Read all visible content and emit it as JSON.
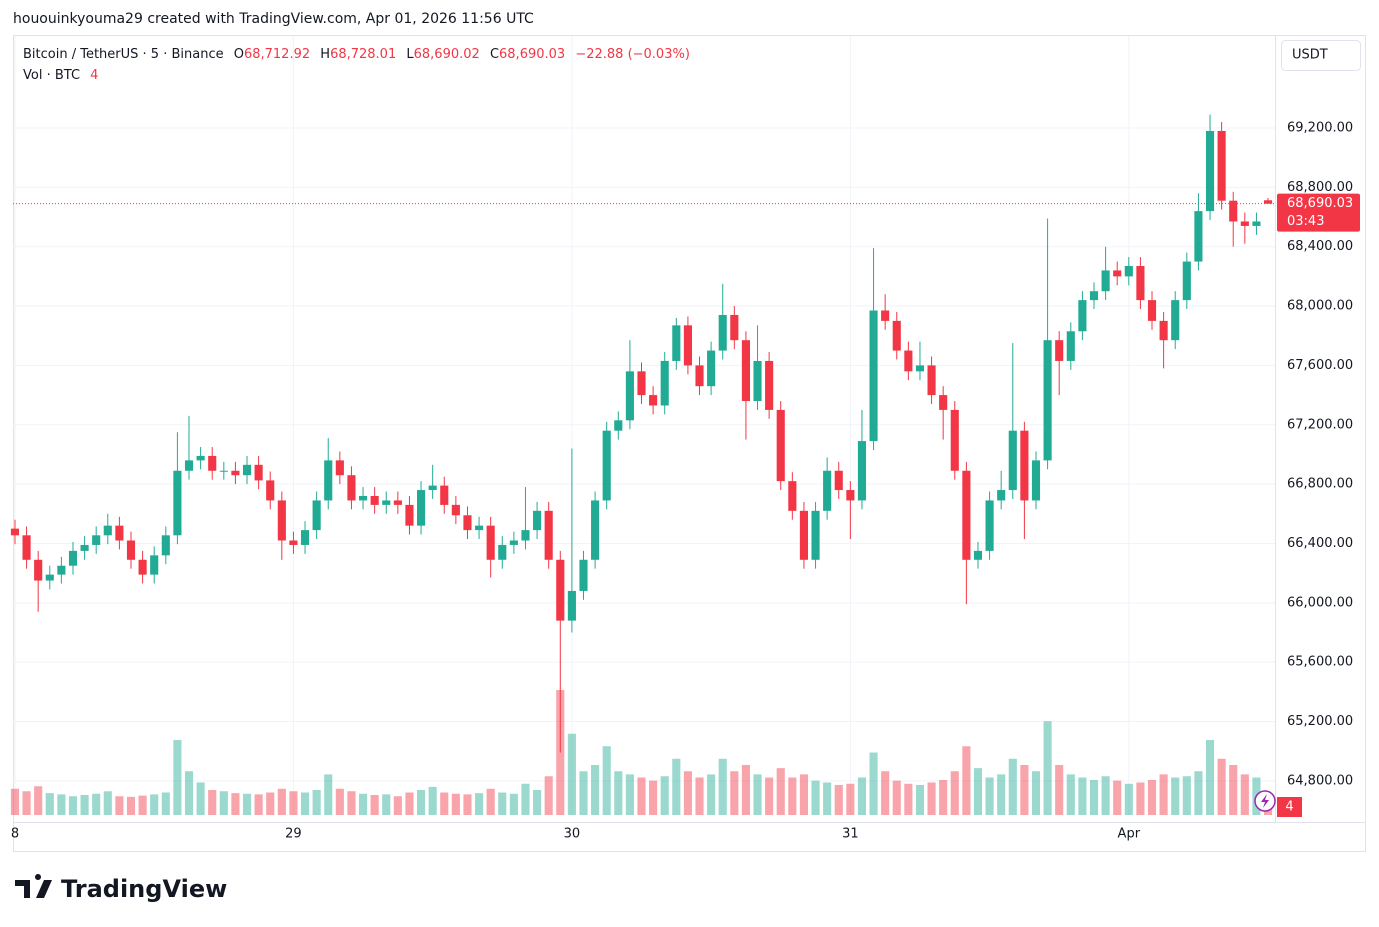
{
  "header": "hououinkyouma29 created with TradingView.com, Apr 01, 2026 11:56 UTC",
  "logo": "TradingView",
  "chart_data": {
    "type": "candlestick",
    "title": "Bitcoin / TetherUS · 5 · Binance",
    "legend": {
      "open_label": "O",
      "open": "68,712.92",
      "high_label": "H",
      "high": "68,728.01",
      "low_label": "L",
      "low": "68,690.02",
      "close_label": "C",
      "close": "68,690.03",
      "change": "−22.88 (−0.03%)"
    },
    "volume_title": "Vol · BTC",
    "volume_value": "4",
    "volume_badge": "4",
    "currency": "USDT",
    "last_price": {
      "value": 68690.03,
      "label": "68,690.03"
    },
    "countdown": "03:43",
    "up_color": "#22ab94",
    "down_color": "#f23645",
    "grid": true,
    "xlim": [
      -0.17,
      108.6
    ],
    "xticks": [
      {
        "value": 0,
        "label": "8"
      },
      {
        "value": 24,
        "label": "29"
      },
      {
        "value": 48,
        "label": "30"
      },
      {
        "value": 72,
        "label": "31"
      },
      {
        "value": 96,
        "label": "Apr"
      }
    ],
    "ylim": [
      64570,
      69820
    ],
    "yticks": [
      {
        "value": 64800,
        "label": "64,800.00"
      },
      {
        "value": 65200,
        "label": "65,200.00"
      },
      {
        "value": 65600,
        "label": "65,600.00"
      },
      {
        "value": 66000,
        "label": "66,000.00"
      },
      {
        "value": 66400,
        "label": "66,400.00"
      },
      {
        "value": 66800,
        "label": "66,800.00"
      },
      {
        "value": 67200,
        "label": "67,200.00"
      },
      {
        "value": 67600,
        "label": "67,600.00"
      },
      {
        "value": 68000,
        "label": "68,000.00"
      },
      {
        "value": 68400,
        "label": "68,400.00"
      },
      {
        "value": 68800,
        "label": "68,800.00"
      },
      {
        "value": 69200,
        "label": "69,200.00"
      }
    ],
    "x": [
      0,
      1,
      2,
      3,
      4,
      5,
      6,
      7,
      8,
      9,
      10,
      11,
      12,
      13,
      14,
      15,
      16,
      17,
      18,
      19,
      20,
      21,
      22,
      23,
      24,
      25,
      26,
      27,
      28,
      29,
      30,
      31,
      32,
      33,
      34,
      35,
      36,
      37,
      38,
      39,
      40,
      41,
      42,
      43,
      44,
      45,
      46,
      47,
      48,
      49,
      50,
      51,
      52,
      53,
      54,
      55,
      56,
      57,
      58,
      59,
      60,
      61,
      62,
      63,
      64,
      65,
      66,
      67,
      68,
      69,
      70,
      71,
      72,
      73,
      74,
      75,
      76,
      77,
      78,
      79,
      80,
      81,
      82,
      83,
      84,
      85,
      86,
      87,
      88,
      89,
      90,
      91,
      92,
      93,
      94,
      95,
      96,
      97,
      98,
      99,
      100,
      101,
      102,
      103,
      104,
      105,
      106,
      107,
      108
    ],
    "open": [
      66500,
      66455,
      66290,
      66150,
      66190,
      66250,
      66350,
      66390,
      66455,
      66520,
      66420,
      66290,
      66190,
      66320,
      66455,
      66890,
      66960,
      66990,
      66890,
      66890,
      66860,
      66930,
      66825,
      66690,
      66420,
      66390,
      66490,
      66690,
      66960,
      66860,
      66690,
      66720,
      66660,
      66690,
      66660,
      66520,
      66760,
      66790,
      66660,
      66590,
      66490,
      66520,
      66290,
      66390,
      66420,
      66490,
      66620,
      66290,
      65880,
      66080,
      66290,
      66690,
      67160,
      67230,
      67560,
      67400,
      67330,
      67630,
      67870,
      67600,
      67460,
      67700,
      67940,
      67770,
      67360,
      67630,
      67300,
      66820,
      66620,
      66290,
      66620,
      66890,
      66760,
      66690,
      67090,
      67970,
      67900,
      67700,
      67560,
      67600,
      67400,
      67300,
      66890,
      66290,
      66350,
      66690,
      66760,
      67160,
      66690,
      66960,
      67770,
      67630,
      67830,
      68040,
      68100,
      68240,
      68200,
      68270,
      68040,
      67900,
      67770,
      68040,
      68300,
      68640,
      69180,
      68710,
      68570,
      68540,
      68712.92
    ],
    "high": [
      66560,
      66515,
      66350,
      66250,
      66310,
      66410,
      66450,
      66515,
      66600,
      66580,
      66480,
      66350,
      66380,
      66515,
      67150,
      67260,
      67050,
      67050,
      66950,
      66950,
      66990,
      66990,
      66885,
      66750,
      66480,
      66550,
      66750,
      67110,
      67020,
      66920,
      66780,
      66780,
      66750,
      66750,
      66720,
      66820,
      66930,
      66850,
      66720,
      66650,
      66580,
      66580,
      66450,
      66480,
      66780,
      66680,
      66680,
      66350,
      67040,
      66350,
      66750,
      67220,
      67290,
      67770,
      67620,
      67460,
      67690,
      67920,
      67930,
      67660,
      67760,
      68150,
      68000,
      67830,
      67870,
      67690,
      67360,
      66880,
      66680,
      66680,
      66980,
      66950,
      66820,
      67300,
      68390,
      68080,
      67960,
      67760,
      67760,
      67660,
      67460,
      67360,
      66950,
      66410,
      66750,
      66890,
      67750,
      67220,
      67020,
      68590,
      67830,
      67890,
      68100,
      68160,
      68400,
      68300,
      68330,
      68330,
      68100,
      67960,
      68100,
      68360,
      68760,
      69290,
      69240,
      68770,
      68630,
      68630,
      68728.01
    ],
    "low": [
      66395,
      66230,
      65940,
      66090,
      66130,
      66190,
      66290,
      66330,
      66395,
      66360,
      66230,
      66130,
      66130,
      66260,
      66395,
      66830,
      66900,
      66830,
      66830,
      66800,
      66800,
      66765,
      66630,
      66290,
      66330,
      66330,
      66430,
      66630,
      66800,
      66630,
      66630,
      66600,
      66600,
      66600,
      66460,
      66460,
      66700,
      66600,
      66530,
      66430,
      66430,
      66170,
      66230,
      66330,
      66360,
      66430,
      66230,
      64990,
      65800,
      66020,
      66230,
      66630,
      67100,
      67170,
      67340,
      67270,
      67270,
      67570,
      67540,
      67400,
      67400,
      67640,
      67710,
      67100,
      67300,
      67240,
      66760,
      66560,
      66230,
      66230,
      66560,
      66700,
      66430,
      66630,
      67030,
      67840,
      67640,
      67500,
      67500,
      67340,
      67100,
      66830,
      65990,
      66230,
      66290,
      66630,
      66700,
      66430,
      66630,
      66900,
      67400,
      67570,
      67770,
      67980,
      68040,
      68140,
      68140,
      67980,
      67840,
      67580,
      67710,
      67980,
      68240,
      68580,
      68650,
      68400,
      68420,
      68480,
      68690.02
    ],
    "close": [
      66455,
      66290,
      66150,
      66190,
      66250,
      66350,
      66390,
      66455,
      66520,
      66420,
      66290,
      66190,
      66320,
      66455,
      66890,
      66960,
      66990,
      66890,
      66890,
      66860,
      66930,
      66825,
      66690,
      66420,
      66390,
      66490,
      66690,
      66960,
      66860,
      66690,
      66720,
      66660,
      66690,
      66660,
      66520,
      66760,
      66790,
      66660,
      66590,
      66490,
      66520,
      66290,
      66390,
      66420,
      66490,
      66620,
      66290,
      65880,
      66080,
      66290,
      66690,
      67160,
      67230,
      67560,
      67400,
      67330,
      67630,
      67870,
      67600,
      67460,
      67700,
      67940,
      67770,
      67360,
      67630,
      67300,
      66820,
      66620,
      66290,
      66620,
      66890,
      66760,
      66690,
      67090,
      67970,
      67900,
      67700,
      67560,
      67600,
      67400,
      67300,
      66890,
      66290,
      66350,
      66690,
      66760,
      67160,
      66690,
      66960,
      67770,
      67630,
      67830,
      68040,
      68100,
      68240,
      68200,
      68270,
      68040,
      67900,
      67770,
      68040,
      68300,
      68640,
      69180,
      68710,
      68570,
      68540,
      68570,
      68690.03
    ],
    "volume": [
      420,
      380,
      460,
      350,
      330,
      300,
      320,
      340,
      380,
      300,
      290,
      310,
      330,
      360,
      1200,
      700,
      520,
      400,
      380,
      350,
      340,
      330,
      360,
      420,
      380,
      360,
      400,
      650,
      420,
      380,
      340,
      320,
      330,
      300,
      360,
      400,
      450,
      360,
      340,
      330,
      350,
      420,
      360,
      340,
      500,
      400,
      620,
      2000,
      1300,
      700,
      800,
      1100,
      700,
      650,
      600,
      550,
      620,
      900,
      700,
      600,
      650,
      900,
      700,
      800,
      650,
      600,
      750,
      600,
      650,
      550,
      520,
      480,
      500,
      600,
      1000,
      700,
      550,
      500,
      480,
      520,
      560,
      700,
      1100,
      750,
      600,
      650,
      900,
      800,
      700,
      1500,
      800,
      650,
      600,
      560,
      620,
      550,
      500,
      520,
      560,
      650,
      600,
      620,
      700,
      1200,
      900,
      800,
      650,
      600,
      300
    ]
  }
}
